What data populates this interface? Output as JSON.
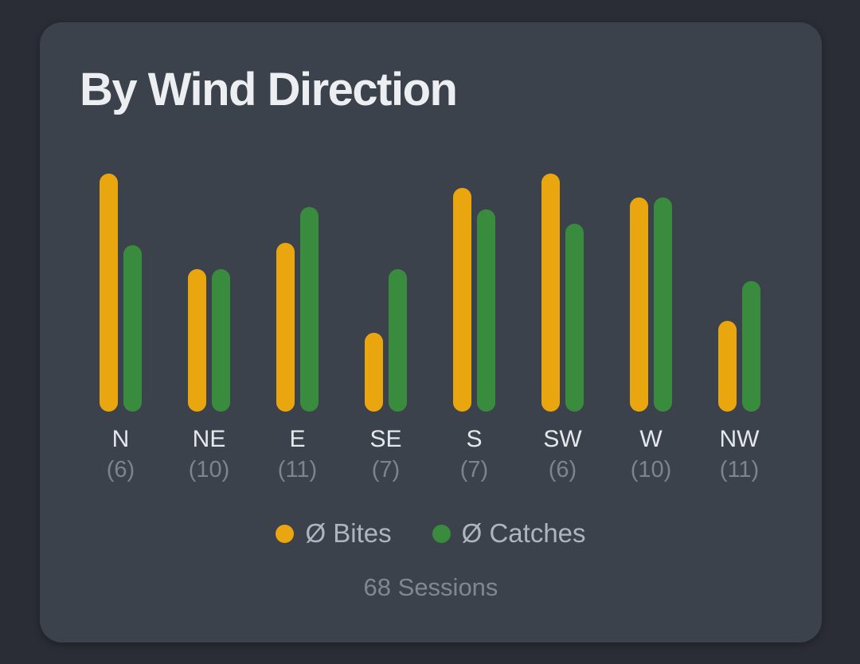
{
  "card": {
    "title": "By Wind Direction",
    "sessions": "68 Sessions"
  },
  "colors": {
    "page_bg": "#2A2D36",
    "card_bg": "#3C424C",
    "bites_bar": "#EAA60F",
    "catches_bar": "#398B3E",
    "title_text": "#ECEEF1",
    "direction_text": "#E4E7EB",
    "count_text": "#7E848E",
    "legend_text": "#AFB5BF",
    "sessions_text": "#82878F"
  },
  "legend": {
    "items": [
      {
        "label": "Ø Bites",
        "color": "#EAA60F"
      },
      {
        "label": "Ø Catches",
        "color": "#398B3E"
      }
    ]
  },
  "chart_data": {
    "type": "bar",
    "title": "By Wind Direction",
    "categories": [
      "N",
      "NE",
      "E",
      "SE",
      "S",
      "SW",
      "W",
      "NW"
    ],
    "category_session_counts": [
      "(6)",
      "(10)",
      "(11)",
      "(7)",
      "(7)",
      "(6)",
      "(10)",
      "(11)"
    ],
    "series": [
      {
        "name": "Ø Bites",
        "color": "#EAA60F",
        "values_pct_of_max": [
          100,
          60,
          71,
          33,
          94,
          100,
          90,
          38
        ]
      },
      {
        "name": "Ø Catches",
        "color": "#398B3E",
        "values_pct_of_max": [
          70,
          60,
          86,
          60,
          85,
          79,
          90,
          55
        ]
      }
    ],
    "value_axis": "none shown (bar heights are relative, expressed as % of tallest bar)",
    "legend_position": "bottom",
    "footnote": "68 Sessions",
    "grid": false
  }
}
